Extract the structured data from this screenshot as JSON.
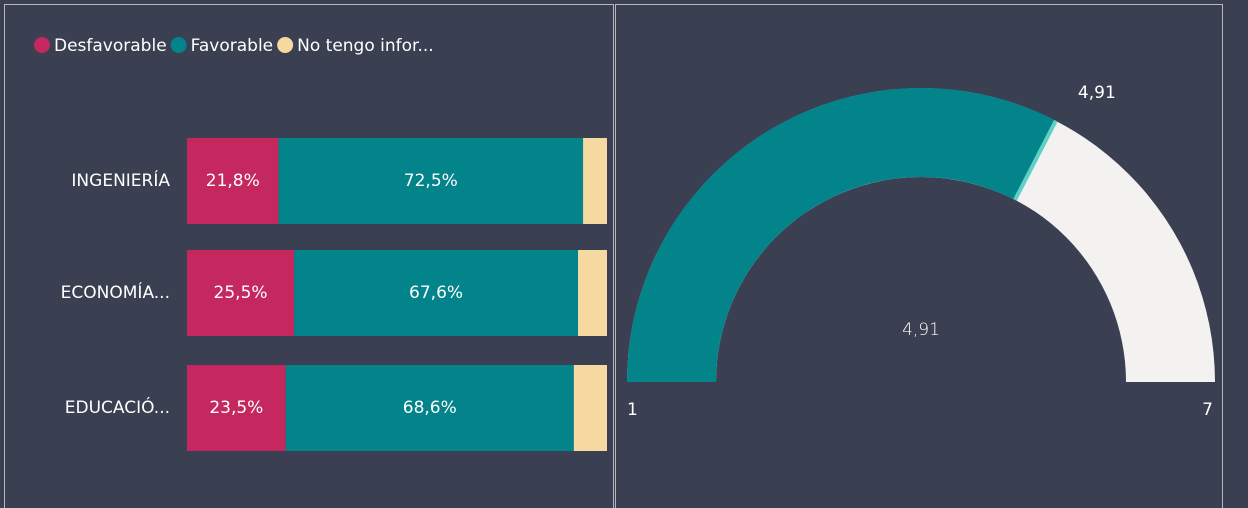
{
  "chart_data": [
    {
      "type": "bar",
      "orientation": "horizontal",
      "stacked": true,
      "categories": [
        "INGENIERÍA",
        "ECONOMÍA...",
        "EDUCACIÓ..."
      ],
      "series": [
        {
          "name": "Desfavorable",
          "color": "#c4285e",
          "values": [
            21.8,
            25.5,
            23.5
          ],
          "value_labels": [
            "21,8%",
            "25,5%",
            "23,5%"
          ]
        },
        {
          "name": "Favorable",
          "color": "#03838a",
          "values": [
            72.5,
            67.6,
            68.6
          ],
          "value_labels": [
            "72,5%",
            "67,6%",
            "68,6%"
          ]
        },
        {
          "name": "No tengo infor...",
          "color": "#f6d9a0",
          "values": [
            5.7,
            6.9,
            7.9
          ]
        }
      ],
      "xlim": [
        0,
        100
      ],
      "legend": "top-left"
    },
    {
      "type": "gauge",
      "value": 4.91,
      "value_label": "4,91",
      "color": "#03838a",
      "track_color": "#f3f2f1",
      "marker_color": "#5fd0c6",
      "ylim": [
        1,
        7
      ]
    }
  ]
}
